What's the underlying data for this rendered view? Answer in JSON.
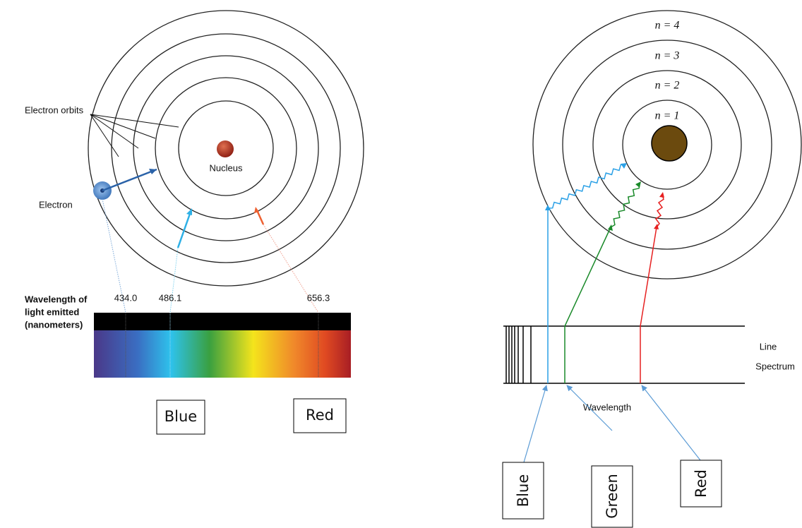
{
  "left": {
    "orbits_label": "Electron orbits",
    "nucleus_label": "Nucleus",
    "electron_label": "Electron",
    "wavelength_caption": [
      "Wavelength of",
      "light emitted",
      "(nanometers)"
    ],
    "wavelengths": [
      "434.0",
      "486.1",
      "656.3"
    ],
    "boxes": [
      "Blue",
      "Red"
    ]
  },
  "right": {
    "levels": [
      "n = 4",
      "n = 3",
      "n = 2",
      "n = 1"
    ],
    "spectrum_label": [
      "Line",
      "Spectrum"
    ],
    "axis_label": "Wavelength",
    "boxes": [
      "Blue",
      "Green",
      "Red"
    ]
  }
}
